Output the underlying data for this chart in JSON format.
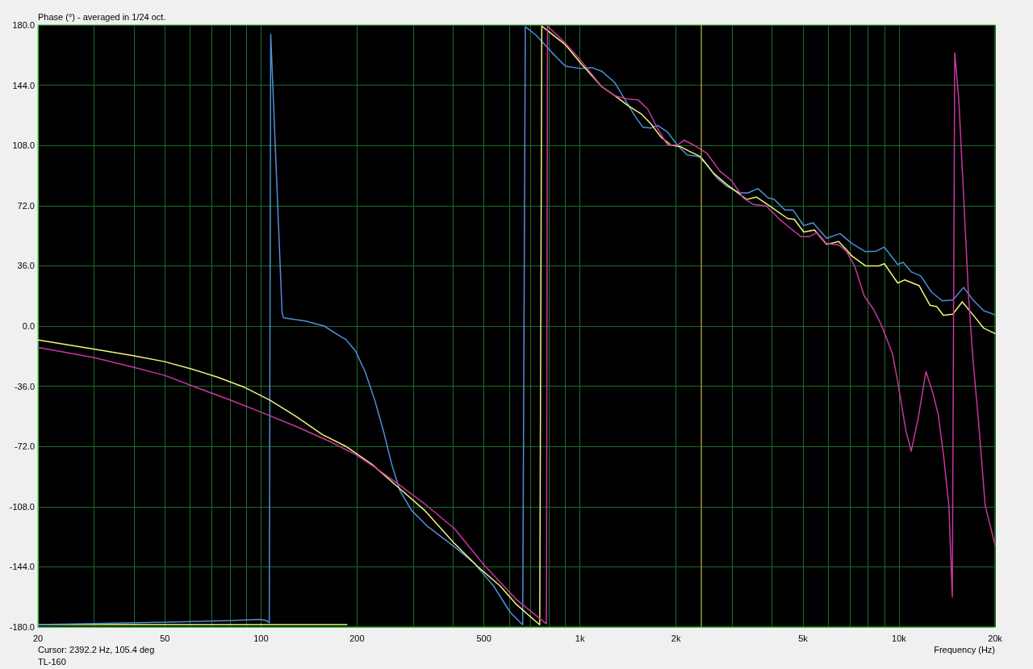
{
  "chart_data": {
    "type": "line",
    "title": "Phase (°) - averaged in 1/24 oct.",
    "xlabel": "Frequency (Hz)",
    "annotations": [
      "Cursor: 2392.2 Hz, 105.4 deg",
      "TL-160"
    ],
    "log": "x",
    "grid": true,
    "marker": "none",
    "line_style": "solid",
    "xlim": [
      20,
      20000
    ],
    "xticks": [
      20,
      {
        "value": 30,
        "label": null
      },
      {
        "value": 40,
        "label": null
      },
      50,
      {
        "value": 60,
        "label": null
      },
      {
        "value": 70,
        "label": null
      },
      {
        "value": 80,
        "label": null
      },
      {
        "value": 90,
        "label": null
      },
      100,
      200,
      {
        "value": 300,
        "label": null
      },
      {
        "value": 400,
        "label": null
      },
      500,
      {
        "value": 600,
        "label": null
      },
      {
        "value": 700,
        "label": null
      },
      {
        "value": 800,
        "label": null
      },
      {
        "value": 900,
        "label": null
      },
      {
        "value": 1000,
        "label": "1k"
      },
      {
        "value": 2000,
        "label": "2k"
      },
      {
        "value": 3000,
        "label": null
      },
      {
        "value": 4000,
        "label": null
      },
      {
        "value": 5000,
        "label": "5k"
      },
      {
        "value": 6000,
        "label": null
      },
      {
        "value": 7000,
        "label": null
      },
      {
        "value": 8000,
        "label": null
      },
      {
        "value": 9000,
        "label": null
      },
      {
        "value": 10000,
        "label": "10k"
      },
      {
        "value": 20000,
        "label": "20k"
      }
    ],
    "ylim": [
      -180,
      180
    ],
    "yticks": [
      {
        "value": -180,
        "label": "-180.0"
      },
      {
        "value": -144,
        "label": "-144.0"
      },
      {
        "value": -108,
        "label": "-108.0"
      },
      {
        "value": -72,
        "label": "-72.0"
      },
      {
        "value": -36,
        "label": "-36.0"
      },
      {
        "value": 0,
        "label": "0.0"
      },
      {
        "value": 36,
        "label": "36.0"
      },
      {
        "value": 72,
        "label": "72.0"
      },
      {
        "value": 108,
        "label": "108.0"
      },
      {
        "value": 144,
        "label": "144.0"
      },
      {
        "value": 180,
        "label": "180.0"
      }
    ],
    "ref_lines": [
      {
        "axis": "x",
        "value": 2392.2,
        "color": "#9a9a1e"
      }
    ],
    "series": [
      {
        "color": "#f4f47c",
        "x": [
          20,
          186
        ],
        "values": [
          -178.5,
          -178.5
        ]
      },
      {
        "color": "#4f8fd6",
        "x": [
          20,
          50,
          80,
          99.3,
          104,
          106.2,
          107.3,
          116.5,
          117.7,
          138.6,
          157.8,
          180,
          184.3,
          197.8,
          212.4,
          228.2,
          242.2,
          257,
          272.6,
          296.4,
          333.8,
          403.6,
          465.4,
          536.4,
          604.4,
          661.4,
          674,
          727,
          819,
          900,
          1002,
          1089,
          1169,
          1286,
          1381,
          1483,
          1573,
          1669,
          1751,
          1881,
          2019,
          2168,
          2357,
          2500,
          2685,
          2884,
          3173,
          3366,
          3613,
          3880,
          4060,
          4386,
          4650,
          5028,
          5377,
          5929,
          6531,
          7126,
          7851,
          8486,
          8995,
          9908,
          10300,
          10920,
          11690,
          12630,
          13650,
          14750,
          15940,
          17060,
          18430,
          20000
        ],
        "values": [
          -178.5,
          -177.1,
          -176.1,
          -175.4,
          -176.1,
          -177.5,
          174.5,
          7.8,
          4.9,
          2.9,
          0,
          -6.9,
          -7.9,
          -14.8,
          -27.6,
          -45.3,
          -63,
          -82.7,
          -98.4,
          -110.2,
          -120,
          -131.9,
          -141.7,
          -155.5,
          -171.2,
          -178.7,
          179,
          174.1,
          163.3,
          155.4,
          154,
          154.6,
          152.4,
          145.6,
          135.7,
          125.9,
          119,
          118.4,
          120,
          116,
          108.2,
          102.3,
          101.3,
          96.4,
          88.5,
          83.6,
          79.6,
          79.6,
          82.2,
          76.7,
          75.8,
          69.4,
          69.4,
          60.1,
          61.8,
          52.5,
          55.3,
          49.3,
          44.5,
          44.8,
          47.2,
          36.8,
          38.1,
          32.4,
          30,
          20.4,
          15.1,
          15.6,
          23.1,
          15.6,
          9.2,
          6.7
        ]
      },
      {
        "color": "#f4f47c",
        "x": [
          20,
          29.9,
          39.8,
          49.9,
          60.3,
          73,
          88.2,
          106.7,
          129,
          156,
          184.3,
          222.8,
          269.6,
          325.8,
          403.6,
          476.4,
          562.6,
          630.4,
          748,
          759,
          799.8,
          900,
          1014,
          1169,
          1286,
          1414,
          1555,
          1669,
          1793,
          1925,
          2068,
          2220,
          2385,
          2622,
          2884,
          3173,
          3326,
          3572,
          3928,
          4474,
          4696,
          5028,
          5432,
          5929,
          6469,
          7126,
          7851,
          8652,
          8995,
          9908,
          10410,
          11570,
          12510,
          13130,
          13780,
          14750,
          15780,
          17060,
          18430,
          20000
        ],
        "values": [
          -8.3,
          -13.8,
          -17.7,
          -21.3,
          -25.6,
          -30.5,
          -36.4,
          -44.3,
          -54.1,
          -65,
          -71.9,
          -82.7,
          -96.5,
          -110.2,
          -129.9,
          -143.6,
          -155.5,
          -166.3,
          -178.7,
          179.4,
          176,
          168.2,
          156.4,
          143.2,
          137.7,
          131.8,
          126.9,
          120.9,
          113.1,
          108.2,
          107.2,
          104.2,
          101.3,
          91.4,
          84.6,
          78.7,
          75.7,
          77.1,
          71.8,
          64.3,
          63.8,
          56.2,
          57.4,
          48.8,
          50.5,
          41.8,
          36,
          36,
          37.3,
          25.7,
          27.6,
          24.1,
          12.4,
          11.6,
          6.4,
          7.1,
          14.5,
          6.7,
          -1.3,
          -4.5
        ]
      },
      {
        "color": "#c8369e",
        "x": [
          20,
          29.9,
          39.8,
          49.9,
          60.3,
          80.2,
          99.3,
          129,
          163.7,
          197.8,
          228.2,
          269.6,
          325.8,
          403.6,
          499.6,
          630.4,
          785,
          791,
          900,
          1002,
          1169,
          1286,
          1414,
          1519,
          1630,
          1751,
          1881,
          2019,
          2118,
          2274,
          2500,
          2750,
          2988,
          3247,
          3488,
          3835,
          4217,
          4529,
          4922,
          5224,
          5536,
          5929,
          6469,
          6854,
          7264,
          7778,
          8318,
          8820,
          9534,
          9908,
          10500,
          10920,
          11460,
          12150,
          12760,
          13260,
          13780,
          14330,
          14690,
          14950,
          15390,
          15950,
          16520,
          17060,
          17730,
          18620,
          20000
        ],
        "values": [
          -12.8,
          -18.8,
          -24.6,
          -29.5,
          -35.5,
          -44.3,
          -51.2,
          -60.1,
          -68.9,
          -76.8,
          -84.6,
          -94.5,
          -106.3,
          -121,
          -142.7,
          -163.4,
          -178.1,
          179.4,
          169.2,
          159.3,
          143.2,
          137.7,
          135.7,
          135.3,
          129.8,
          118,
          108.2,
          108.2,
          111.1,
          108.2,
          103.3,
          92.5,
          86.9,
          76.7,
          72.7,
          71.8,
          63.9,
          59,
          53.5,
          53.4,
          55.8,
          49.3,
          48.5,
          44.5,
          35.7,
          18,
          10,
          0.3,
          -16.5,
          -33.4,
          -62.3,
          -74.9,
          -55.9,
          -27.3,
          -39.9,
          -52.7,
          -76.8,
          -107.3,
          -162,
          163.3,
          135.7,
          76.7,
          17.7,
          -20.6,
          -55.9,
          -107.3,
          -131
        ]
      }
    ]
  }
}
